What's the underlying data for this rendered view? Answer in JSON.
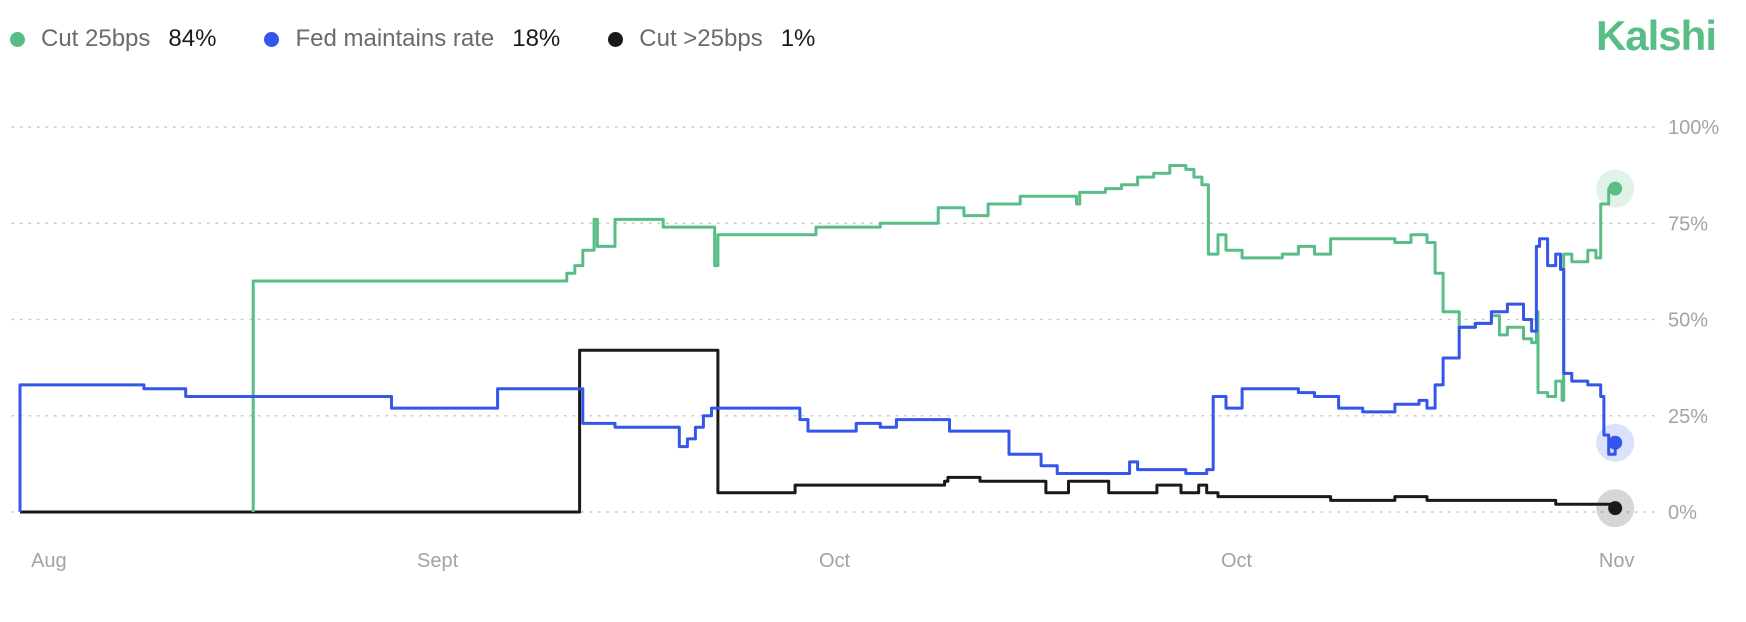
{
  "brand": {
    "name": "Kalshi",
    "color": "#58bd87"
  },
  "legend": [
    {
      "name": "Cut 25bps",
      "value": "84%",
      "color": "#58bd87"
    },
    {
      "name": "Fed maintains rate",
      "value": "18%",
      "color": "#3456ea"
    },
    {
      "name": "Cut >25bps",
      "value": "1%",
      "color": "#1a1a1a"
    }
  ],
  "chart_data": {
    "type": "line",
    "title": "",
    "xlabel": "",
    "ylabel": "",
    "ylim": [
      0,
      100
    ],
    "xlim": [
      0,
      100
    ],
    "y_ticks": [
      0,
      25,
      50,
      75,
      100
    ],
    "y_tick_labels": [
      "0%",
      "25%",
      "50%",
      "75%",
      "100%"
    ],
    "x_tick_labels": [
      {
        "label": "Aug",
        "x": 1
      },
      {
        "label": "Sept",
        "x": 25
      },
      {
        "label": "Oct",
        "x": 50
      },
      {
        "label": "Oct",
        "x": 75
      },
      {
        "label": "Nov",
        "x": 98.5
      }
    ],
    "grid": "horizontal-dotted",
    "series": [
      {
        "name": "Cut 25bps",
        "color": "#58bd87",
        "points": [
          [
            15,
            0
          ],
          [
            15,
            60
          ],
          [
            34,
            60
          ],
          [
            34.5,
            62
          ],
          [
            35,
            64
          ],
          [
            35.5,
            68
          ],
          [
            36,
            68
          ],
          [
            36.2,
            76
          ],
          [
            36.4,
            69
          ],
          [
            37,
            69
          ],
          [
            37.5,
            76
          ],
          [
            40,
            76
          ],
          [
            40.5,
            74
          ],
          [
            43.5,
            74
          ],
          [
            43.7,
            64
          ],
          [
            43.9,
            72
          ],
          [
            49,
            72
          ],
          [
            50,
            74
          ],
          [
            53,
            74
          ],
          [
            54,
            75
          ],
          [
            57.5,
            75
          ],
          [
            57.6,
            79
          ],
          [
            59,
            79
          ],
          [
            59.2,
            77
          ],
          [
            60.5,
            77
          ],
          [
            60.7,
            80
          ],
          [
            62.5,
            80
          ],
          [
            62.7,
            82
          ],
          [
            66,
            82
          ],
          [
            66.2,
            80
          ],
          [
            66.4,
            83
          ],
          [
            68,
            84
          ],
          [
            69,
            85
          ],
          [
            70,
            87
          ],
          [
            71,
            88
          ],
          [
            72,
            90
          ],
          [
            73,
            89
          ],
          [
            73.5,
            87
          ],
          [
            74,
            85
          ],
          [
            74.4,
            67
          ],
          [
            75,
            72
          ],
          [
            75.5,
            68
          ],
          [
            76.5,
            66
          ],
          [
            79,
            67
          ],
          [
            80,
            69
          ],
          [
            81,
            67
          ],
          [
            82,
            71
          ],
          [
            84,
            71
          ],
          [
            86,
            70
          ],
          [
            87,
            72
          ],
          [
            88,
            70
          ],
          [
            88.5,
            62
          ],
          [
            89,
            52
          ],
          [
            90,
            48
          ],
          [
            91,
            49
          ],
          [
            92,
            51
          ],
          [
            92.5,
            46
          ],
          [
            93,
            48
          ],
          [
            94,
            45
          ],
          [
            94.5,
            44
          ],
          [
            94.8,
            52
          ],
          [
            94.9,
            31
          ],
          [
            95.5,
            30
          ],
          [
            96,
            34
          ],
          [
            96.4,
            29
          ],
          [
            96.5,
            67
          ],
          [
            97,
            65
          ],
          [
            98,
            68
          ],
          [
            98.5,
            66
          ],
          [
            98.8,
            80
          ],
          [
            99.3,
            84
          ],
          [
            99.7,
            84
          ]
        ]
      },
      {
        "name": "Fed maintains rate",
        "color": "#3456ea",
        "points": [
          [
            0.5,
            0
          ],
          [
            0.5,
            33
          ],
          [
            8,
            33
          ],
          [
            8.2,
            32
          ],
          [
            10.7,
            32
          ],
          [
            10.8,
            30
          ],
          [
            23.5,
            30
          ],
          [
            23.6,
            27
          ],
          [
            30,
            27
          ],
          [
            30.2,
            32
          ],
          [
            35.3,
            32
          ],
          [
            35.5,
            23
          ],
          [
            37.5,
            22
          ],
          [
            41,
            22
          ],
          [
            41.5,
            17
          ],
          [
            42,
            19
          ],
          [
            42.5,
            22
          ],
          [
            43,
            25
          ],
          [
            43.5,
            27
          ],
          [
            48,
            27
          ],
          [
            49,
            24
          ],
          [
            49.5,
            21
          ],
          [
            51.5,
            21
          ],
          [
            52.5,
            23
          ],
          [
            54,
            22
          ],
          [
            55,
            24
          ],
          [
            58,
            24
          ],
          [
            58.3,
            21
          ],
          [
            61.5,
            21
          ],
          [
            62,
            15
          ],
          [
            64,
            12
          ],
          [
            65,
            10
          ],
          [
            69,
            10
          ],
          [
            69.5,
            13
          ],
          [
            70,
            11
          ],
          [
            73,
            10
          ],
          [
            74.3,
            11
          ],
          [
            74.7,
            30
          ],
          [
            75.5,
            27
          ],
          [
            76.5,
            32
          ],
          [
            80,
            31
          ],
          [
            81,
            30
          ],
          [
            82.5,
            27
          ],
          [
            84,
            26
          ],
          [
            86,
            28
          ],
          [
            87.5,
            29
          ],
          [
            88,
            27
          ],
          [
            88.5,
            33
          ],
          [
            89,
            40
          ],
          [
            90,
            48
          ],
          [
            91,
            49
          ],
          [
            92,
            52
          ],
          [
            93,
            54
          ],
          [
            94,
            50
          ],
          [
            94.5,
            47
          ],
          [
            94.8,
            69
          ],
          [
            95,
            71
          ],
          [
            95.5,
            64
          ],
          [
            96,
            67
          ],
          [
            96.3,
            63
          ],
          [
            96.5,
            36
          ],
          [
            97,
            34
          ],
          [
            98,
            33
          ],
          [
            98.8,
            30
          ],
          [
            99,
            20
          ],
          [
            99.3,
            15
          ],
          [
            99.7,
            18
          ]
        ]
      },
      {
        "name": "Cut >25bps",
        "color": "#1a1a1a",
        "points": [
          [
            0.5,
            0
          ],
          [
            35.3,
            0
          ],
          [
            35.3,
            42
          ],
          [
            43.8,
            42
          ],
          [
            43.9,
            5
          ],
          [
            48.5,
            5
          ],
          [
            48.7,
            7
          ],
          [
            53,
            7
          ],
          [
            58,
            8
          ],
          [
            58.2,
            9
          ],
          [
            60,
            9
          ],
          [
            60.2,
            8
          ],
          [
            64,
            8
          ],
          [
            64.3,
            5
          ],
          [
            65.5,
            5
          ],
          [
            65.7,
            8
          ],
          [
            68,
            8
          ],
          [
            68.2,
            5
          ],
          [
            71,
            5
          ],
          [
            71.2,
            7
          ],
          [
            72.5,
            7
          ],
          [
            72.7,
            5
          ],
          [
            73.5,
            5
          ],
          [
            73.8,
            7
          ],
          [
            74.3,
            5
          ],
          [
            75,
            4
          ],
          [
            78,
            4
          ],
          [
            80,
            4
          ],
          [
            82,
            3
          ],
          [
            84,
            3
          ],
          [
            86,
            4
          ],
          [
            88,
            3
          ],
          [
            90,
            3
          ],
          [
            92,
            3
          ],
          [
            94,
            3
          ],
          [
            96,
            2
          ],
          [
            98,
            2
          ],
          [
            99.7,
            1
          ]
        ]
      }
    ]
  }
}
